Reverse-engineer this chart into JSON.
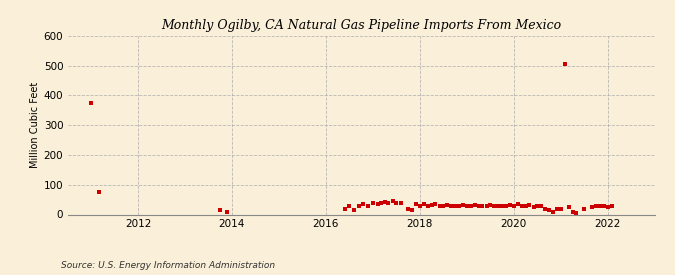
{
  "title": "Monthly Ogilby, CA Natural Gas Pipeline Imports From Mexico",
  "ylabel": "Million Cubic Feet",
  "source": "Source: U.S. Energy Information Administration",
  "background_color": "#faefd8",
  "plot_bg_color": "#faefd8",
  "marker_color": "#cc0000",
  "marker": "s",
  "markersize": 2.5,
  "xlim_start": 2010.5,
  "xlim_end": 2023.0,
  "ylim": [
    0,
    600
  ],
  "yticks": [
    0,
    100,
    200,
    300,
    400,
    500,
    600
  ],
  "xticks": [
    2012,
    2014,
    2016,
    2018,
    2020,
    2022
  ],
  "data": [
    [
      2011.0,
      375
    ],
    [
      2011.17,
      75
    ],
    [
      2013.75,
      15
    ],
    [
      2013.9,
      8
    ],
    [
      2016.4,
      20
    ],
    [
      2016.5,
      30
    ],
    [
      2016.6,
      15
    ],
    [
      2016.7,
      28
    ],
    [
      2016.8,
      35
    ],
    [
      2016.9,
      30
    ],
    [
      2017.0,
      38
    ],
    [
      2017.1,
      35
    ],
    [
      2017.17,
      40
    ],
    [
      2017.25,
      42
    ],
    [
      2017.33,
      38
    ],
    [
      2017.42,
      45
    ],
    [
      2017.5,
      40
    ],
    [
      2017.6,
      38
    ],
    [
      2017.75,
      20
    ],
    [
      2017.83,
      15
    ],
    [
      2017.92,
      35
    ],
    [
      2018.0,
      30
    ],
    [
      2018.08,
      35
    ],
    [
      2018.17,
      30
    ],
    [
      2018.25,
      32
    ],
    [
      2018.33,
      35
    ],
    [
      2018.42,
      30
    ],
    [
      2018.5,
      28
    ],
    [
      2018.58,
      32
    ],
    [
      2018.67,
      30
    ],
    [
      2018.75,
      28
    ],
    [
      2018.83,
      30
    ],
    [
      2018.92,
      32
    ],
    [
      2019.0,
      30
    ],
    [
      2019.08,
      28
    ],
    [
      2019.17,
      32
    ],
    [
      2019.25,
      30
    ],
    [
      2019.33,
      28
    ],
    [
      2019.42,
      30
    ],
    [
      2019.5,
      32
    ],
    [
      2019.58,
      28
    ],
    [
      2019.67,
      30
    ],
    [
      2019.75,
      30
    ],
    [
      2019.83,
      28
    ],
    [
      2019.92,
      32
    ],
    [
      2020.0,
      30
    ],
    [
      2020.08,
      35
    ],
    [
      2020.17,
      30
    ],
    [
      2020.25,
      28
    ],
    [
      2020.33,
      32
    ],
    [
      2020.42,
      25
    ],
    [
      2020.5,
      28
    ],
    [
      2020.58,
      30
    ],
    [
      2020.67,
      20
    ],
    [
      2020.75,
      15
    ],
    [
      2020.83,
      10
    ],
    [
      2020.92,
      18
    ],
    [
      2021.0,
      20
    ],
    [
      2021.08,
      505
    ],
    [
      2021.17,
      25
    ],
    [
      2021.25,
      8
    ],
    [
      2021.33,
      5
    ],
    [
      2021.5,
      20
    ],
    [
      2021.67,
      25
    ],
    [
      2021.75,
      30
    ],
    [
      2021.83,
      28
    ],
    [
      2021.92,
      30
    ],
    [
      2022.0,
      25
    ],
    [
      2022.08,
      30
    ]
  ]
}
